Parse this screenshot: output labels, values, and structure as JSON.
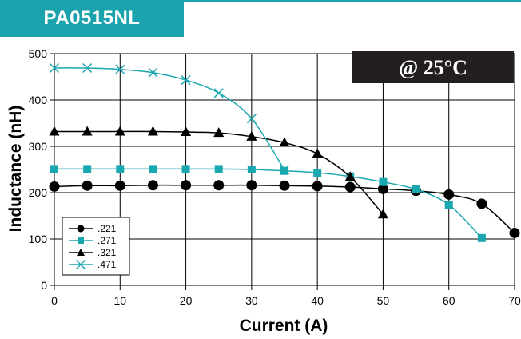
{
  "header": {
    "title": "PA0515NL"
  },
  "condition": "@ 25°C",
  "colors": {
    "accent": "#1aa3ad",
    "black": "#000000",
    "cyan_series": "#19a7b0"
  },
  "chart_data": {
    "type": "line",
    "title": "",
    "xlabel": "Current (A)",
    "ylabel": "Inductance (nH)",
    "xlim": [
      0,
      70
    ],
    "ylim": [
      0,
      500
    ],
    "xticks": [
      0,
      10,
      20,
      30,
      40,
      50,
      60,
      70
    ],
    "yticks": [
      0,
      100,
      200,
      300,
      400,
      500
    ],
    "grid": true,
    "legend_position": "bottom-left",
    "series": [
      {
        "name": ".221",
        "marker": "circle",
        "color": "#000000",
        "x": [
          0,
          5,
          10,
          15,
          20,
          25,
          30,
          35,
          40,
          45,
          50,
          55,
          60,
          65,
          70
        ],
        "y": [
          213,
          215,
          215,
          216,
          216,
          216,
          216,
          215,
          214,
          212,
          208,
          204,
          196,
          176,
          113
        ]
      },
      {
        "name": ".271",
        "marker": "square",
        "color": "#19a7b0",
        "x": [
          0,
          5,
          10,
          15,
          20,
          25,
          30,
          35,
          40,
          45,
          50,
          55,
          60,
          65
        ],
        "y": [
          251,
          251,
          251,
          251,
          251,
          251,
          250,
          247,
          243,
          235,
          223,
          207,
          174,
          102
        ]
      },
      {
        "name": ".321",
        "marker": "triangle",
        "color": "#000000",
        "x": [
          0,
          5,
          10,
          15,
          20,
          25,
          30,
          35,
          40,
          45,
          50
        ],
        "y": [
          332,
          332,
          332,
          332,
          331,
          329,
          321,
          308,
          284,
          234,
          153
        ]
      },
      {
        "name": ".471",
        "marker": "x",
        "color": "#19a7b0",
        "x": [
          0,
          5,
          10,
          15,
          20,
          25,
          30,
          35
        ],
        "y": [
          469,
          469,
          466,
          459,
          443,
          415,
          360,
          249
        ]
      }
    ]
  }
}
